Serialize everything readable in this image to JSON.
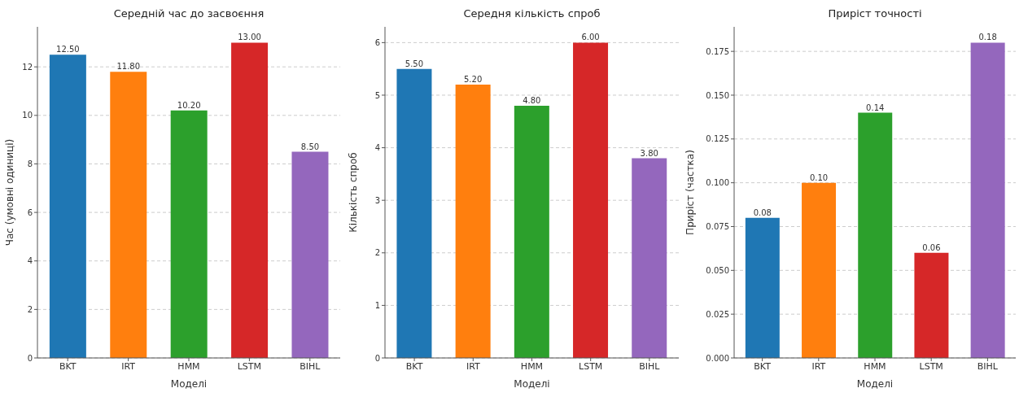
{
  "chart_data": [
    {
      "type": "bar",
      "title": "Середній час до засвоєння",
      "xlabel": "Моделі",
      "ylabel": "Час (умовні одиниці)",
      "categories": [
        "BKT",
        "IRT",
        "HMM",
        "LSTM",
        "BIHL"
      ],
      "values": [
        12.5,
        11.8,
        10.2,
        13.0,
        8.5
      ],
      "value_labels": [
        "12.50",
        "11.80",
        "10.20",
        "13.00",
        "8.50"
      ],
      "colors": [
        "#1f77b4",
        "#ff7f0e",
        "#2ca02c",
        "#d62728",
        "#9467bd"
      ],
      "ylim": [
        0,
        13.65
      ],
      "yticks": [
        0,
        2,
        4,
        6,
        8,
        10,
        12
      ],
      "grid": "y"
    },
    {
      "type": "bar",
      "title": "Середня кількість спроб",
      "xlabel": "Моделі",
      "ylabel": "Кількість спроб",
      "categories": [
        "BKT",
        "IRT",
        "HMM",
        "LSTM",
        "BIHL"
      ],
      "values": [
        5.5,
        5.2,
        4.8,
        6.0,
        3.8
      ],
      "value_labels": [
        "5.50",
        "5.20",
        "4.80",
        "6.00",
        "3.80"
      ],
      "colors": [
        "#1f77b4",
        "#ff7f0e",
        "#2ca02c",
        "#d62728",
        "#9467bd"
      ],
      "ylim": [
        0,
        6.3
      ],
      "yticks": [
        0,
        1,
        2,
        3,
        4,
        5,
        6
      ],
      "grid": "y"
    },
    {
      "type": "bar",
      "title": "Приріст точності",
      "xlabel": "Моделі",
      "ylabel": "Приріст (частка)",
      "categories": [
        "BKT",
        "IRT",
        "HMM",
        "LSTM",
        "BIHL"
      ],
      "values": [
        0.08,
        0.1,
        0.14,
        0.06,
        0.18
      ],
      "value_labels": [
        "0.08",
        "0.10",
        "0.14",
        "0.06",
        "0.18"
      ],
      "colors": [
        "#1f77b4",
        "#ff7f0e",
        "#2ca02c",
        "#d62728",
        "#9467bd"
      ],
      "ylim": [
        0,
        0.189
      ],
      "yticks": [
        {
          "value": 0,
          "label": "0.000"
        },
        {
          "value": 0.025,
          "label": "0.025"
        },
        {
          "value": 0.05,
          "label": "0.050"
        },
        {
          "value": 0.075,
          "label": "0.075"
        },
        {
          "value": 0.1,
          "label": "0.100"
        },
        {
          "value": 0.125,
          "label": "0.125"
        },
        {
          "value": 0.15,
          "label": "0.150"
        },
        {
          "value": 0.175,
          "label": "0.175"
        }
      ],
      "grid": "y"
    }
  ]
}
